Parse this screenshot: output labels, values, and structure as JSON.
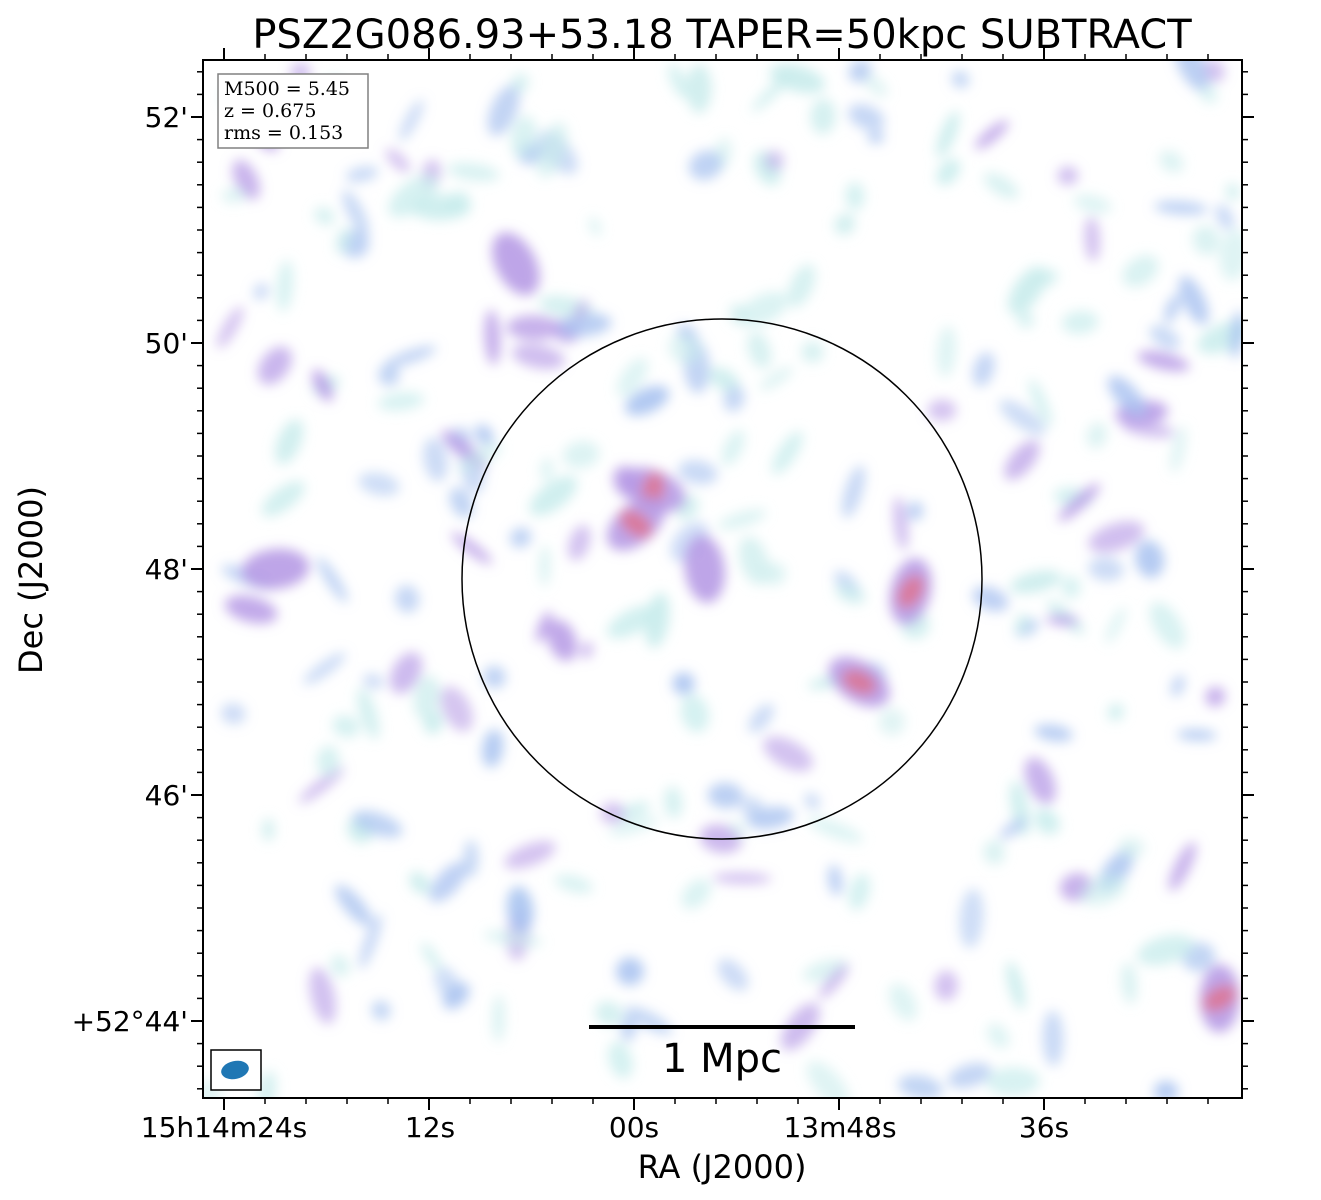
{
  "chart_data": {
    "type": "heatmap",
    "title": "PSZ2G086.93+53.18 TAPER=50kpc SUBTRACT",
    "xlabel": "RA (J2000)",
    "ylabel": "Dec (J2000)",
    "x_ticks": [
      "15h14m24s",
      "12s",
      "00s",
      "13m48s",
      "36s"
    ],
    "y_ticks": [
      "52'",
      "50'",
      "48'",
      "46'",
      "+52°44'"
    ],
    "info": {
      "line1": "M500 = 5.45",
      "line2": "z = 0.675",
      "line3": "rms = 0.153"
    },
    "scalebar_label": "1 Mpc",
    "colors": {
      "low": "#c8ecec",
      "mid": "#a9c3f0",
      "high": "#b79be6",
      "peak": "#e0708a",
      "beam": "#1f77b4"
    },
    "emission_blobs": [
      {
        "ra": "15h14m21s",
        "dec": "48.0",
        "level": 0.8
      },
      {
        "ra": "15h14m07s",
        "dec": "50.7",
        "level": 0.75
      },
      {
        "ra": "15h13m59s",
        "dec": "48.7",
        "level": 0.9
      },
      {
        "ra": "15h14m00s",
        "dec": "48.4",
        "level": 0.95
      },
      {
        "ra": "15h13m56s",
        "dec": "48.0",
        "level": 0.7
      },
      {
        "ra": "15h13m44s",
        "dec": "47.8",
        "level": 0.95
      },
      {
        "ra": "15h13m47s",
        "dec": "47.0",
        "level": 0.9
      },
      {
        "ra": "15h13m26s",
        "dec": "44.2",
        "level": 1.0
      }
    ]
  }
}
